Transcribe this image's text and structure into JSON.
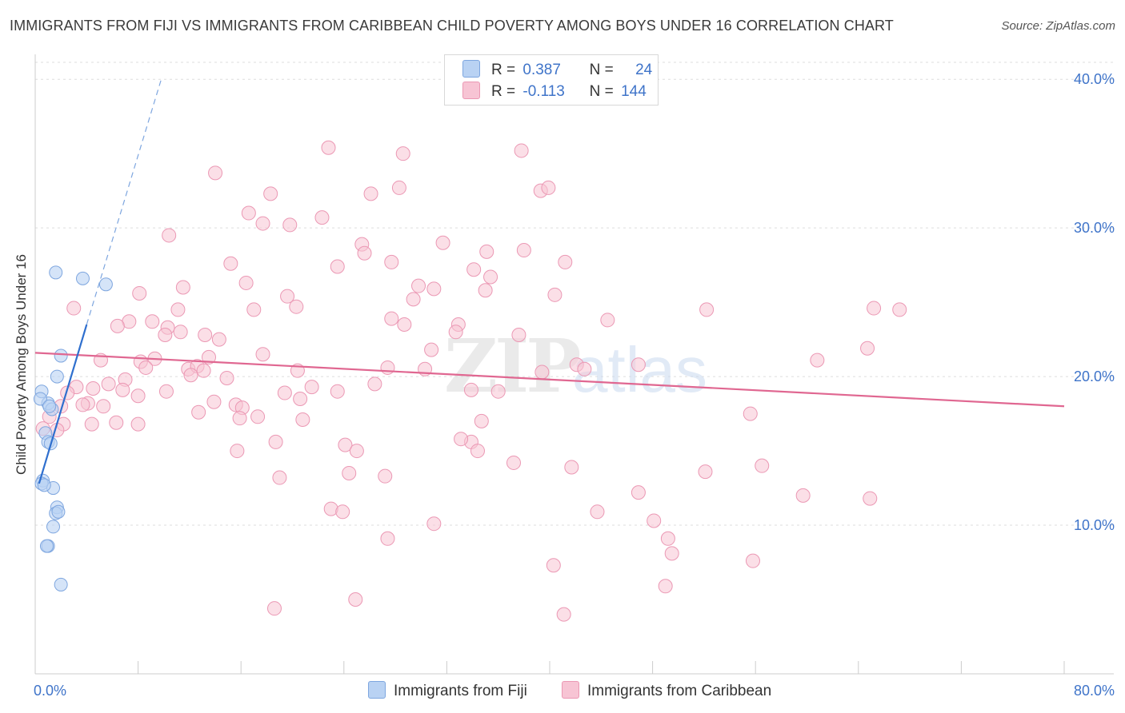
{
  "title": "IMMIGRANTS FROM FIJI VS IMMIGRANTS FROM CARIBBEAN CHILD POVERTY AMONG BOYS UNDER 16 CORRELATION CHART",
  "source": "Source: ZipAtlas.com",
  "watermark": {
    "zip": "ZIP",
    "atlas": "atlas"
  },
  "legend": {
    "fiji": {
      "r_label": "R =",
      "r_value": "0.387",
      "n_label": "N =",
      "n_value": "24"
    },
    "caribbean": {
      "r_label": "R =",
      "r_value": "-0.113",
      "n_label": "N =",
      "n_value": "144"
    }
  },
  "colors": {
    "fiji_fill": "#b9d2f3",
    "fiji_stroke": "#7ea6df",
    "fiji_line": "#2f6fce",
    "caribbean_fill": "#f7c4d4",
    "caribbean_stroke": "#eb98b4",
    "caribbean_line": "#e06791",
    "axis_text": "#3f74c9",
    "grid": "#dddddd"
  },
  "chart_data": {
    "type": "scatter",
    "title": "IMMIGRANTS FROM FIJI VS IMMIGRANTS FROM CARIBBEAN CHILD POVERTY AMONG BOYS UNDER 16 CORRELATION CHART",
    "xlabel": "",
    "ylabel": "Child Poverty Among Boys Under 16",
    "xlim": [
      0,
      80
    ],
    "ylim": [
      0,
      42
    ],
    "x_ticks": [
      0,
      8,
      16,
      24,
      32,
      40,
      48,
      56,
      64,
      72,
      80
    ],
    "x_tick_labels": [
      {
        "value": 0,
        "label": "0.0%"
      },
      {
        "value": 80,
        "label": "80.0%"
      }
    ],
    "y_ticks": [
      {
        "value": 10,
        "label": "10.0%"
      },
      {
        "value": 20,
        "label": "20.0%"
      },
      {
        "value": 30,
        "label": "30.0%"
      },
      {
        "value": 40,
        "label": "40.0%"
      }
    ],
    "series": [
      {
        "name": "Immigrants from Fiji",
        "r": 0.387,
        "n": 24,
        "points": [
          [
            1.6,
            27.0
          ],
          [
            3.7,
            26.6
          ],
          [
            5.5,
            26.2
          ],
          [
            2.0,
            21.4
          ],
          [
            1.7,
            20.0
          ],
          [
            0.5,
            19.0
          ],
          [
            1.0,
            18.2
          ],
          [
            1.3,
            17.8
          ],
          [
            0.8,
            16.2
          ],
          [
            1.0,
            15.6
          ],
          [
            0.6,
            13.0
          ],
          [
            0.5,
            12.8
          ],
          [
            1.4,
            12.5
          ],
          [
            1.7,
            11.2
          ],
          [
            1.6,
            10.8
          ],
          [
            1.8,
            10.9
          ],
          [
            1.4,
            9.9
          ],
          [
            1.0,
            8.6
          ],
          [
            0.9,
            8.6
          ],
          [
            2.0,
            6.0
          ],
          [
            0.4,
            18.5
          ],
          [
            1.2,
            15.5
          ],
          [
            0.7,
            12.7
          ],
          [
            1.1,
            18.0
          ]
        ],
        "trend": {
          "x0": 0.3,
          "y0": 12.8,
          "x1": 4.0,
          "y1": 23.5,
          "dash_x0": 4.0,
          "dash_y0": 23.5,
          "dash_x1": 9.8,
          "dash_y1": 40.0
        }
      },
      {
        "name": "Immigrants from Caribbean",
        "r": -0.113,
        "n": 144,
        "points": [
          [
            22.8,
            35.4
          ],
          [
            28.6,
            35.0
          ],
          [
            37.8,
            35.2
          ],
          [
            14.0,
            33.7
          ],
          [
            18.3,
            32.3
          ],
          [
            26.1,
            32.3
          ],
          [
            28.3,
            32.7
          ],
          [
            39.3,
            32.5
          ],
          [
            39.9,
            32.7
          ],
          [
            16.6,
            31.0
          ],
          [
            17.7,
            30.3
          ],
          [
            19.8,
            30.2
          ],
          [
            22.3,
            30.7
          ],
          [
            10.4,
            29.5
          ],
          [
            25.4,
            28.9
          ],
          [
            31.7,
            29.0
          ],
          [
            25.6,
            28.3
          ],
          [
            35.1,
            28.4
          ],
          [
            38.0,
            28.5
          ],
          [
            15.2,
            27.6
          ],
          [
            23.5,
            27.4
          ],
          [
            27.7,
            27.7
          ],
          [
            34.1,
            27.2
          ],
          [
            41.2,
            27.7
          ],
          [
            16.4,
            26.3
          ],
          [
            35.4,
            26.7
          ],
          [
            11.5,
            26.0
          ],
          [
            29.8,
            26.1
          ],
          [
            31.0,
            25.9
          ],
          [
            35.0,
            25.8
          ],
          [
            8.1,
            25.6
          ],
          [
            19.6,
            25.4
          ],
          [
            29.4,
            25.2
          ],
          [
            40.4,
            25.5
          ],
          [
            3.0,
            24.6
          ],
          [
            17.0,
            24.5
          ],
          [
            11.1,
            24.5
          ],
          [
            20.3,
            24.7
          ],
          [
            52.2,
            24.5
          ],
          [
            65.2,
            24.6
          ],
          [
            67.2,
            24.5
          ],
          [
            7.3,
            23.7
          ],
          [
            9.1,
            23.7
          ],
          [
            6.4,
            23.4
          ],
          [
            10.3,
            23.3
          ],
          [
            27.7,
            23.9
          ],
          [
            28.7,
            23.5
          ],
          [
            32.9,
            23.5
          ],
          [
            44.5,
            23.8
          ],
          [
            10.1,
            22.8
          ],
          [
            13.2,
            22.8
          ],
          [
            14.3,
            22.5
          ],
          [
            11.3,
            23.0
          ],
          [
            32.7,
            23.0
          ],
          [
            37.6,
            22.8
          ],
          [
            64.7,
            21.9
          ],
          [
            30.8,
            21.8
          ],
          [
            17.7,
            21.5
          ],
          [
            5.1,
            21.1
          ],
          [
            8.2,
            21.0
          ],
          [
            9.3,
            21.2
          ],
          [
            13.5,
            21.3
          ],
          [
            42.1,
            20.8
          ],
          [
            46.9,
            20.8
          ],
          [
            60.8,
            21.1
          ],
          [
            8.6,
            20.6
          ],
          [
            11.9,
            20.5
          ],
          [
            12.6,
            20.7
          ],
          [
            13.1,
            20.4
          ],
          [
            20.4,
            20.4
          ],
          [
            27.4,
            20.6
          ],
          [
            30.3,
            20.5
          ],
          [
            42.7,
            20.5
          ],
          [
            7.0,
            19.8
          ],
          [
            12.1,
            20.1
          ],
          [
            14.9,
            19.9
          ],
          [
            39.4,
            20.3
          ],
          [
            5.7,
            19.5
          ],
          [
            6.8,
            19.1
          ],
          [
            4.5,
            19.2
          ],
          [
            3.2,
            19.3
          ],
          [
            2.5,
            18.9
          ],
          [
            10.2,
            19.0
          ],
          [
            8.0,
            18.7
          ],
          [
            21.5,
            19.3
          ],
          [
            23.5,
            19.0
          ],
          [
            26.4,
            19.5
          ],
          [
            36.0,
            19.0
          ],
          [
            33.9,
            19.1
          ],
          [
            19.4,
            18.9
          ],
          [
            20.6,
            18.5
          ],
          [
            5.3,
            18.0
          ],
          [
            4.1,
            18.2
          ],
          [
            2.0,
            18.0
          ],
          [
            3.7,
            18.1
          ],
          [
            13.9,
            18.3
          ],
          [
            15.6,
            18.1
          ],
          [
            16.1,
            17.9
          ],
          [
            12.7,
            17.6
          ],
          [
            17.3,
            17.3
          ],
          [
            1.1,
            17.3
          ],
          [
            2.2,
            16.8
          ],
          [
            4.4,
            16.8
          ],
          [
            6.3,
            16.9
          ],
          [
            8.0,
            16.8
          ],
          [
            15.9,
            17.2
          ],
          [
            20.8,
            17.1
          ],
          [
            34.7,
            17.0
          ],
          [
            55.6,
            17.5
          ],
          [
            1.7,
            16.4
          ],
          [
            0.6,
            16.5
          ],
          [
            18.7,
            15.6
          ],
          [
            24.1,
            15.4
          ],
          [
            25.0,
            15.0
          ],
          [
            33.9,
            15.6
          ],
          [
            15.7,
            15.0
          ],
          [
            34.4,
            15.0
          ],
          [
            33.1,
            15.8
          ],
          [
            37.2,
            14.2
          ],
          [
            41.7,
            13.9
          ],
          [
            56.5,
            14.0
          ],
          [
            24.4,
            13.5
          ],
          [
            27.2,
            13.3
          ],
          [
            19.0,
            13.2
          ],
          [
            52.1,
            13.6
          ],
          [
            46.9,
            12.2
          ],
          [
            59.7,
            12.0
          ],
          [
            64.9,
            11.8
          ],
          [
            23.0,
            11.1
          ],
          [
            23.9,
            10.9
          ],
          [
            43.7,
            10.9
          ],
          [
            48.1,
            10.3
          ],
          [
            31.0,
            10.1
          ],
          [
            27.4,
            9.1
          ],
          [
            49.2,
            9.1
          ],
          [
            49.5,
            8.1
          ],
          [
            55.8,
            7.6
          ],
          [
            40.3,
            7.3
          ],
          [
            49.0,
            5.9
          ],
          [
            24.9,
            5.0
          ],
          [
            18.6,
            4.4
          ],
          [
            41.1,
            4.0
          ]
        ],
        "trend": {
          "x0": 0,
          "y0": 21.6,
          "x1": 80,
          "y1": 18.0
        }
      }
    ],
    "legend": [
      "Immigrants from Fiji",
      "Immigrants from Caribbean"
    ]
  },
  "bottom_legend": {
    "fiji": "Immigrants from Fiji",
    "caribbean": "Immigrants from Caribbean"
  }
}
